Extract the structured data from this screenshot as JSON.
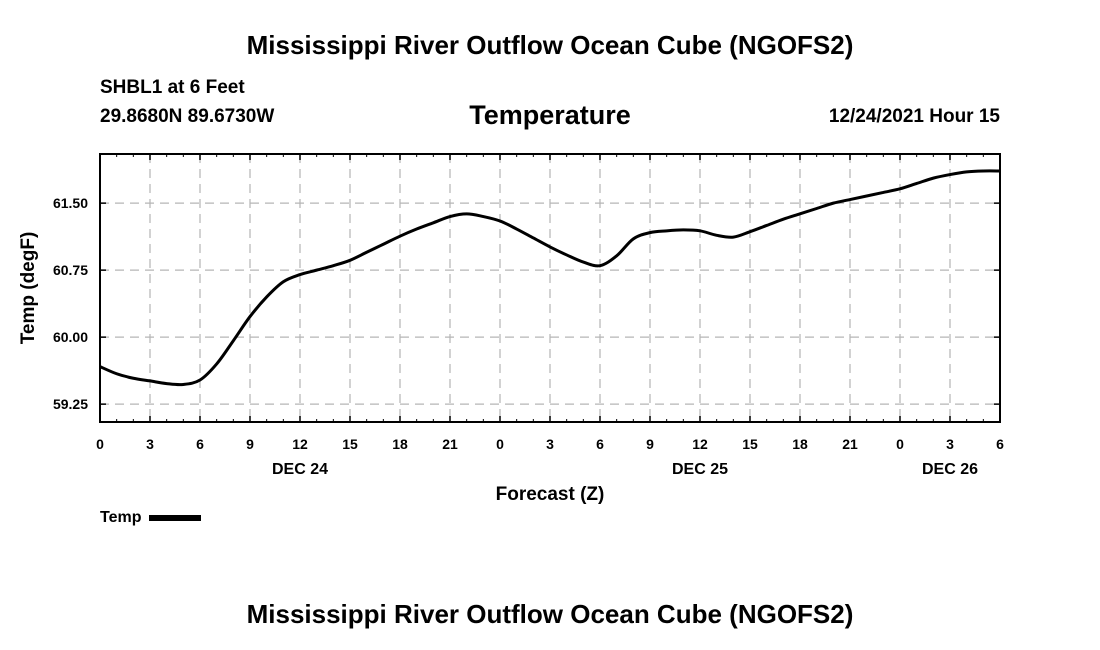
{
  "header": {
    "title": "Mississippi River Outflow Ocean Cube (NGOFS2)",
    "station": "SHBL1 at 6 Feet",
    "coordinates": "29.8680N  89.6730W",
    "parameter": "Temperature",
    "datetime": "12/24/2021 Hour 15"
  },
  "footer": {
    "title": "Mississippi River Outflow Ocean Cube (NGOFS2)"
  },
  "chart_data": {
    "type": "line",
    "title": "Temperature",
    "xlabel": "Forecast (Z)",
    "ylabel": "Temp (degF)",
    "xlim": [
      0,
      54
    ],
    "ylim": [
      59.05,
      62.05
    ],
    "grid": true,
    "x_ticks": [
      0,
      3,
      6,
      9,
      12,
      15,
      18,
      21,
      24,
      27,
      30,
      33,
      36,
      39,
      42,
      45,
      48,
      51,
      54
    ],
    "x_tick_labels": [
      "0",
      "3",
      "6",
      "9",
      "12",
      "15",
      "18",
      "21",
      "0",
      "3",
      "6",
      "9",
      "12",
      "15",
      "18",
      "21",
      "0",
      "3",
      "6"
    ],
    "date_labels": [
      {
        "x": 12,
        "label": "DEC 24"
      },
      {
        "x": 36,
        "label": "DEC 25"
      },
      {
        "x": 51,
        "label": "DEC 26"
      }
    ],
    "y_ticks": [
      59.25,
      60.0,
      60.75,
      61.5
    ],
    "y_tick_labels": [
      "59.25",
      "60.00",
      "60.75",
      "61.50"
    ],
    "legend": {
      "position": "bottom-left",
      "entries": [
        "Temp"
      ]
    },
    "series": [
      {
        "name": "Temp",
        "color": "#000000",
        "x": [
          0,
          1,
          2,
          3,
          4,
          5,
          6,
          7,
          8,
          9,
          10,
          11,
          12,
          13,
          14,
          15,
          16,
          17,
          18,
          19,
          20,
          21,
          22,
          23,
          24,
          25,
          26,
          27,
          28,
          29,
          30,
          31,
          32,
          33,
          34,
          35,
          36,
          37,
          38,
          39,
          40,
          41,
          42,
          43,
          44,
          45,
          46,
          47,
          48,
          49,
          50,
          51,
          52,
          53,
          54
        ],
        "values": [
          59.67,
          59.59,
          59.54,
          59.51,
          59.48,
          59.47,
          59.52,
          59.7,
          59.96,
          60.23,
          60.45,
          60.62,
          60.7,
          60.75,
          60.8,
          60.86,
          60.95,
          61.04,
          61.13,
          61.21,
          61.28,
          61.35,
          61.38,
          61.35,
          61.3,
          61.21,
          61.11,
          61.01,
          60.92,
          60.84,
          60.8,
          60.91,
          61.1,
          61.17,
          61.19,
          61.2,
          61.19,
          61.14,
          61.12,
          61.18,
          61.25,
          61.32,
          61.38,
          61.44,
          61.5,
          61.54,
          61.58,
          61.62,
          61.66,
          61.72,
          61.78,
          61.82,
          61.85,
          61.86,
          61.86
        ]
      }
    ]
  }
}
